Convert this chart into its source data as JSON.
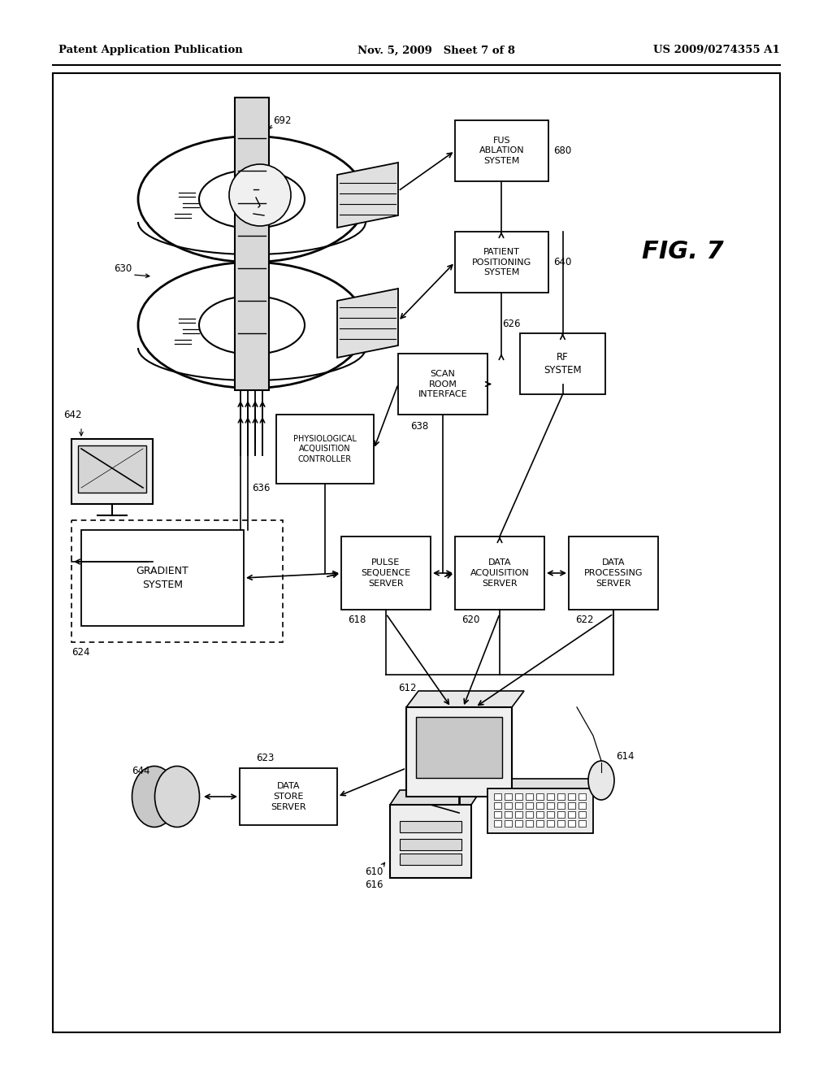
{
  "header_left": "Patent Application Publication",
  "header_center": "Nov. 5, 2009   Sheet 7 of 8",
  "header_right": "US 2009/0274355 A1",
  "fig_label": "FIG. 7",
  "background_color": "#ffffff"
}
